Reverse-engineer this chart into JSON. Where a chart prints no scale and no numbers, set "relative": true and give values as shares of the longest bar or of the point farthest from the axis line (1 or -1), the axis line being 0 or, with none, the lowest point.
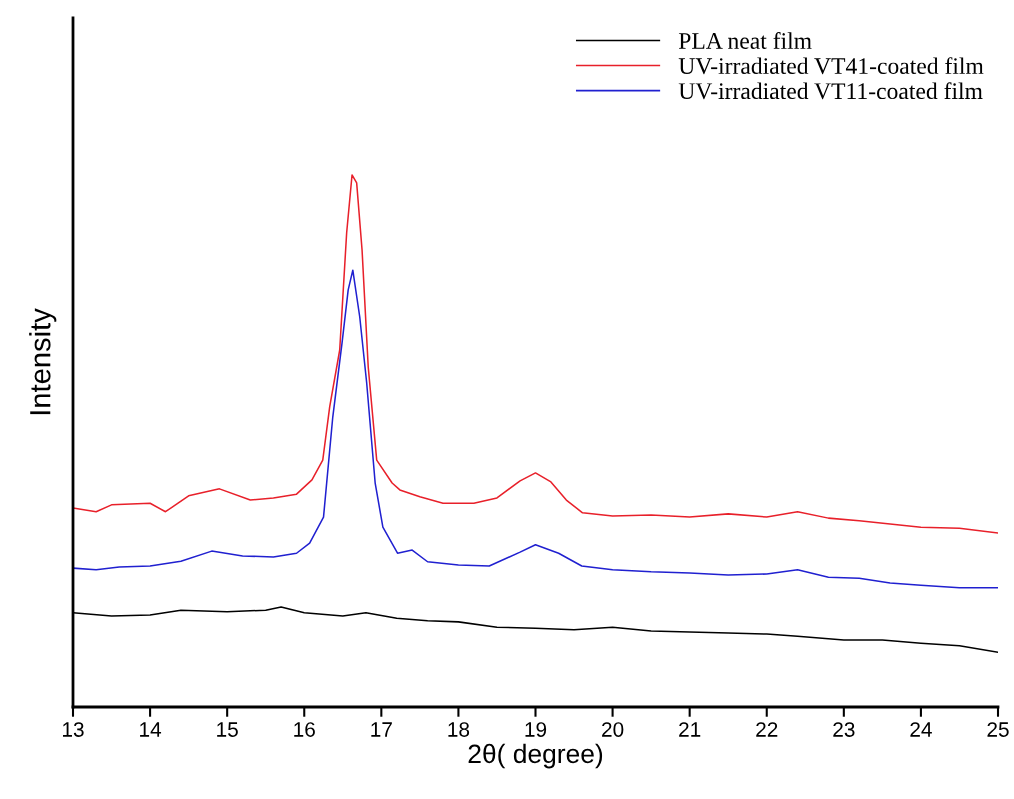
{
  "chart_data": {
    "type": "line",
    "xlabel": "2θ( degree)",
    "ylabel": "Intensity",
    "relative": true,
    "xlim": [
      13,
      25
    ],
    "xticks": [
      13,
      14,
      15,
      16,
      17,
      18,
      19,
      20,
      21,
      22,
      23,
      24,
      25
    ],
    "legend": "top right",
    "grid": false,
    "tick_labels": "x",
    "series": [
      {
        "name": "PLA neat film",
        "color": "#000000",
        "x": [
          13,
          13.5,
          14,
          14.4,
          15,
          15.5,
          15.7,
          16,
          16.5,
          16.8,
          17.2,
          17.6,
          18,
          18.5,
          19,
          19.5,
          20,
          20.5,
          21,
          21.5,
          22,
          22.4,
          23,
          23.5,
          24,
          24.5,
          25
        ],
        "values": [
          0.177,
          0.171,
          0.173,
          0.182,
          0.179,
          0.182,
          0.188,
          0.177,
          0.171,
          0.177,
          0.167,
          0.162,
          0.16,
          0.15,
          0.148,
          0.145,
          0.15,
          0.143,
          0.141,
          0.139,
          0.137,
          0.133,
          0.126,
          0.126,
          0.12,
          0.115,
          0.103
        ]
      },
      {
        "name": "UV-irradiated VT41-coated film",
        "color": "#e8202a",
        "x": [
          13,
          13.3,
          13.5,
          14,
          14.2,
          14.5,
          14.9,
          15.3,
          15.6,
          15.9,
          16.1,
          16.24,
          16.33,
          16.46,
          16.55,
          16.62,
          16.68,
          16.75,
          16.83,
          16.94,
          17.14,
          17.24,
          17.5,
          17.8,
          18.2,
          18.5,
          18.8,
          19.0,
          19.2,
          19.4,
          19.61,
          20,
          20.5,
          21,
          21.5,
          22,
          22.4,
          22.8,
          23.2,
          23.6,
          24,
          24.5,
          25
        ],
        "values": [
          0.374,
          0.367,
          0.38,
          0.383,
          0.367,
          0.397,
          0.41,
          0.389,
          0.393,
          0.4,
          0.427,
          0.464,
          0.564,
          0.671,
          0.891,
          1.0,
          0.985,
          0.859,
          0.639,
          0.464,
          0.421,
          0.408,
          0.395,
          0.383,
          0.383,
          0.393,
          0.425,
          0.44,
          0.423,
          0.389,
          0.365,
          0.359,
          0.361,
          0.357,
          0.363,
          0.357,
          0.367,
          0.355,
          0.35,
          0.344,
          0.338,
          0.336,
          0.327
        ]
      },
      {
        "name": "UV-irradiated VT11-coated film",
        "color": "#2020d0",
        "x": [
          13,
          13.3,
          13.6,
          14,
          14.4,
          14.8,
          15.2,
          15.6,
          15.9,
          16.07,
          16.25,
          16.37,
          16.49,
          16.57,
          16.63,
          16.72,
          16.81,
          16.92,
          17.02,
          17.21,
          17.4,
          17.6,
          18,
          18.4,
          18.8,
          19.0,
          19.3,
          19.6,
          20,
          20.5,
          21,
          21.5,
          22,
          22.4,
          22.8,
          23.2,
          23.6,
          24,
          24.5,
          25
        ],
        "values": [
          0.261,
          0.258,
          0.263,
          0.265,
          0.274,
          0.293,
          0.284,
          0.282,
          0.289,
          0.308,
          0.357,
          0.545,
          0.684,
          0.784,
          0.821,
          0.733,
          0.609,
          0.421,
          0.338,
          0.289,
          0.295,
          0.273,
          0.267,
          0.265,
          0.291,
          0.305,
          0.289,
          0.265,
          0.258,
          0.254,
          0.252,
          0.248,
          0.25,
          0.258,
          0.244,
          0.242,
          0.233,
          0.229,
          0.224,
          0.224
        ]
      }
    ]
  }
}
